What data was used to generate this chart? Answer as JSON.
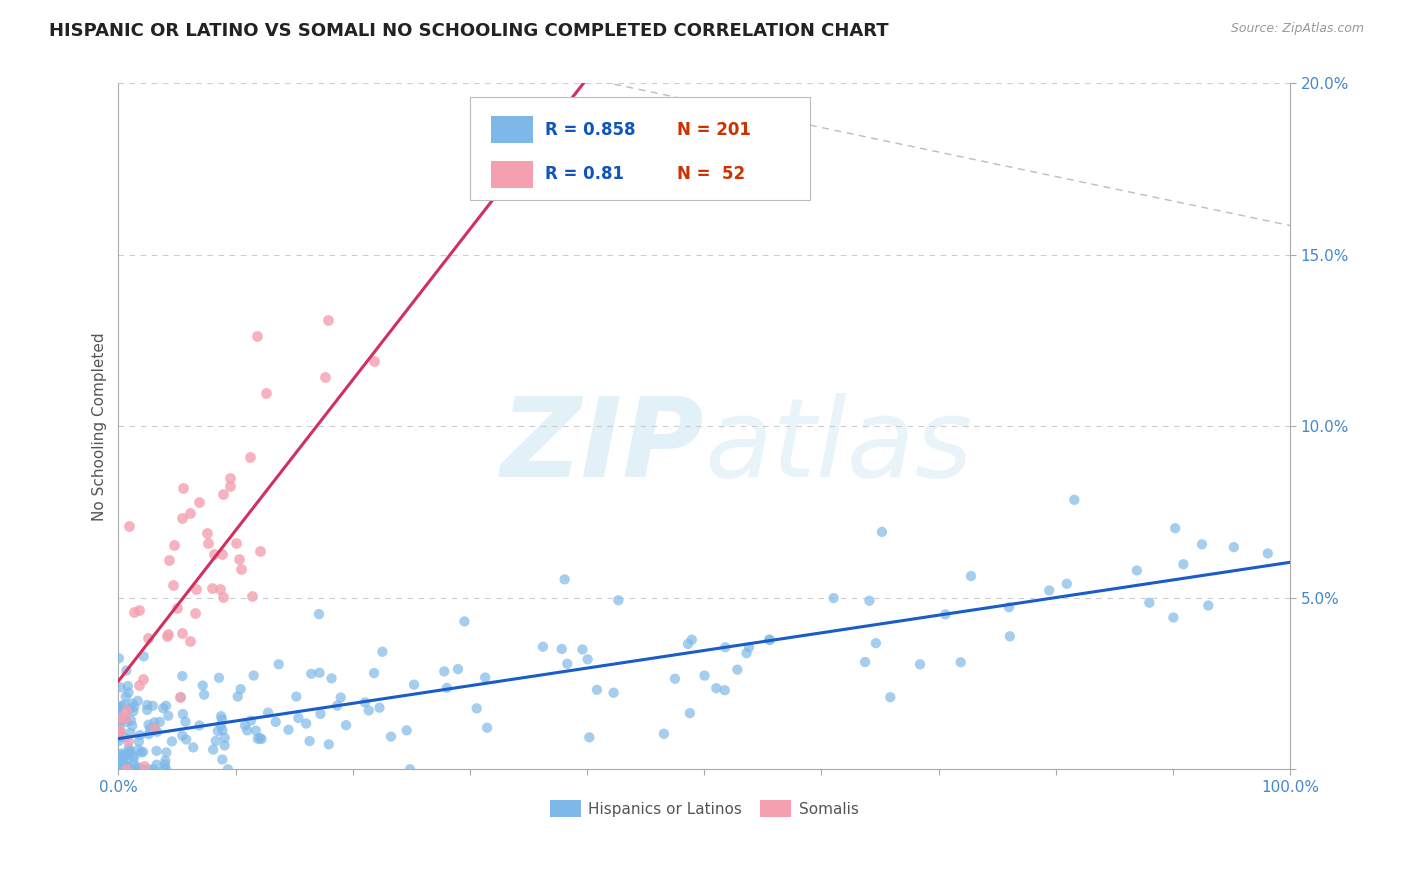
{
  "title": "HISPANIC OR LATINO VS SOMALI NO SCHOOLING COMPLETED CORRELATION CHART",
  "source": "Source: ZipAtlas.com",
  "ylabel": "No Schooling Completed",
  "xlim": [
    0,
    1.0
  ],
  "ylim": [
    0,
    0.2
  ],
  "y_ticks": [
    0.0,
    0.05,
    0.1,
    0.15,
    0.2
  ],
  "y_tick_labels": [
    "",
    "5.0%",
    "10.0%",
    "15.0%",
    "20.0%"
  ],
  "x_ticks": [
    0.0,
    0.1,
    0.2,
    0.3,
    0.4,
    0.5,
    0.6,
    0.7,
    0.8,
    0.9,
    1.0
  ],
  "blue_R": 0.858,
  "blue_N": 201,
  "pink_R": 0.81,
  "pink_N": 52,
  "blue_color": "#7EB8E8",
  "pink_color": "#F4A0B0",
  "blue_line_color": "#1A5DC8",
  "pink_line_color": "#D03060",
  "dashed_line_color": "#C0B8CC",
  "watermark_color": "#D0E8F4",
  "legend_label_blue": "Hispanics or Latinos",
  "legend_label_pink": "Somalis",
  "title_fontsize": 13,
  "seed": 42
}
